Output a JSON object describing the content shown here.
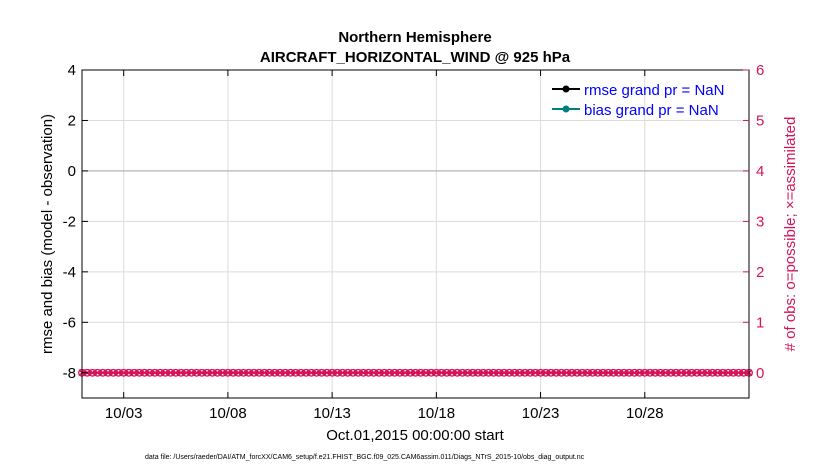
{
  "chart_data": {
    "type": "line",
    "title": "Northern Hemisphere",
    "subtitle": "AIRCRAFT_HORIZONTAL_WIND @ 925 hPa",
    "xlabel": "Oct.01,2015 00:00:00 start",
    "ylabel": "rmse and bias (model - observation)",
    "ylabel_right": "# of obs: o=possible; ×=assimilated",
    "ylim": [
      -9,
      4
    ],
    "ylim_right": [
      -0.5,
      6
    ],
    "xlim": [
      1,
      33
    ],
    "left_ticks": [
      4,
      2,
      0,
      -2,
      -4,
      -6,
      -8
    ],
    "left_tick_labels": [
      "4",
      "2",
      "0",
      "-2",
      "-4",
      "-6",
      "-8"
    ],
    "right_ticks": [
      6,
      5,
      4,
      3,
      2,
      1,
      0
    ],
    "right_tick_labels": [
      "6",
      "5",
      "4",
      "3",
      "2",
      "1",
      "0"
    ],
    "x_ticks": [
      3,
      8,
      13,
      18,
      23,
      28
    ],
    "x_tick_labels": [
      "10/03",
      "10/08",
      "10/13",
      "10/18",
      "10/23",
      "10/28"
    ],
    "grid": true,
    "legend_position": "top-right",
    "series": [
      {
        "name": "rmse grand pr = NaN",
        "color": "#000000",
        "values": []
      },
      {
        "name": "bias grand pr = NaN",
        "color": "#008080",
        "values": []
      }
    ],
    "zero_line": 0,
    "obs_counts": {
      "color": "#d4145a",
      "x_start": 1,
      "x_step": 0.25,
      "x_end": 33,
      "possible": 0,
      "assimilated": 0
    },
    "footer": "data file: /Users/raeder/DAI/ATM_forcXX/CAM6_setup/f.e21.FHIST_BGC.f09_025.CAM6assim.011/Diags_NTrS_2015-10/obs_diag_output.nc",
    "colors": {
      "axis": "#000000",
      "right_axis": "#d4145a",
      "grid": "#dcdcdc",
      "zero_line": "#b0b0b0",
      "legend_text": "#0000ff"
    }
  }
}
